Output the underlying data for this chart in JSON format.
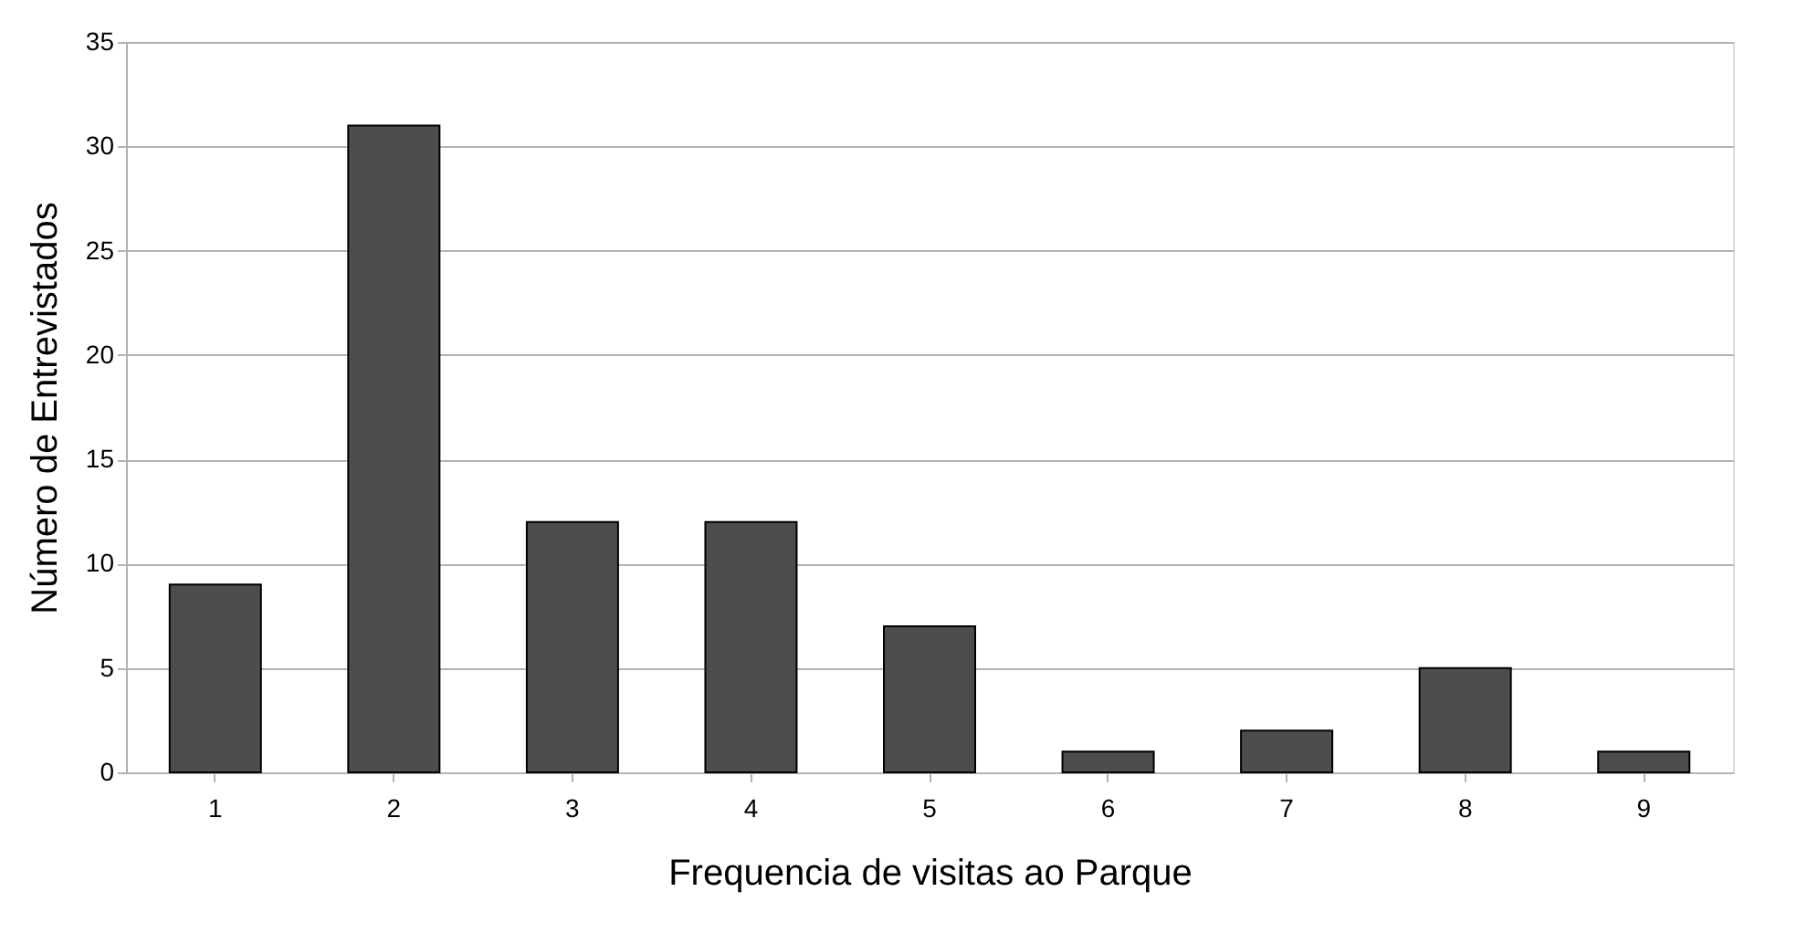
{
  "chart_data": {
    "type": "bar",
    "xlabel": "Frequencia de visitas ao Parque",
    "ylabel": "Número de Entrevistados",
    "categories": [
      "1",
      "2",
      "3",
      "4",
      "5",
      "6",
      "7",
      "8",
      "9"
    ],
    "values": [
      9,
      31,
      12,
      12,
      7,
      1,
      2,
      5,
      1
    ],
    "color": "#4d4d4d",
    "ylim": [
      0,
      35
    ],
    "yticks": [
      0,
      5,
      10,
      15,
      20,
      25,
      30,
      35
    ],
    "grid": "y"
  }
}
